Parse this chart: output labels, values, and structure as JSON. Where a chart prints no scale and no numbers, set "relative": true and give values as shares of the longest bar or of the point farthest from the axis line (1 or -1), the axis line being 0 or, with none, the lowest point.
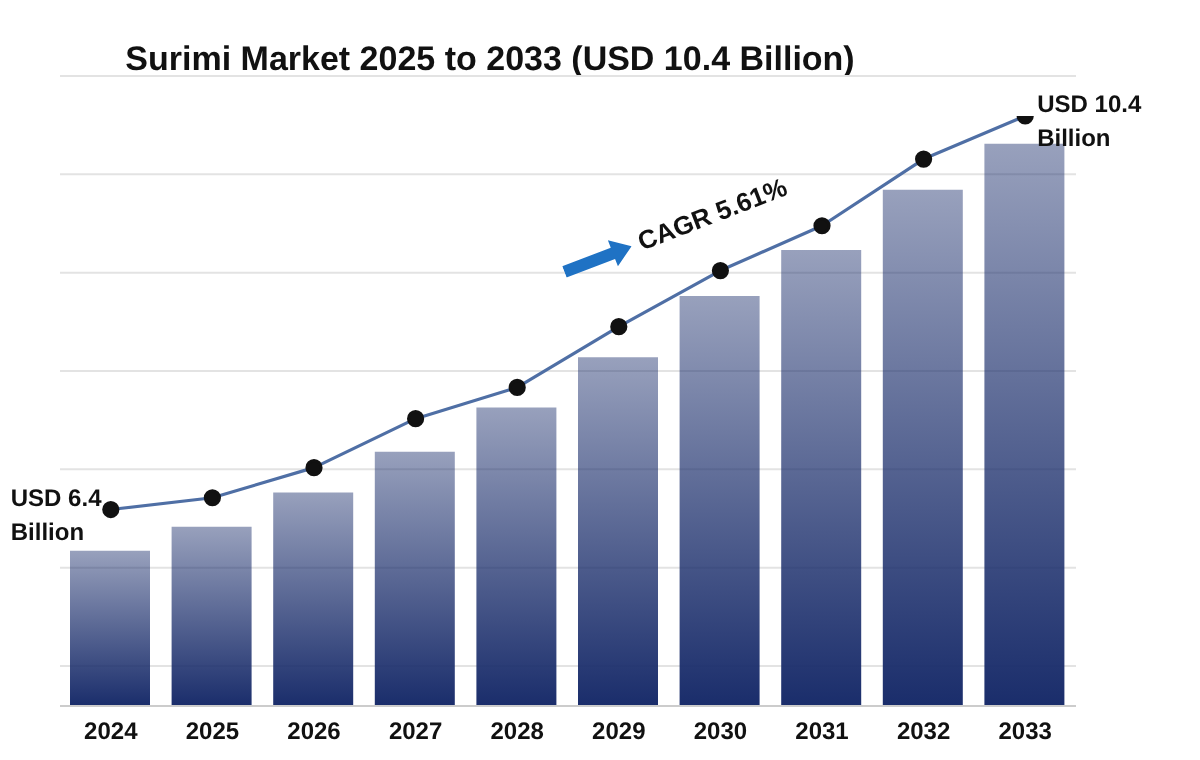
{
  "chart_data": {
    "type": "bar",
    "title": "Surimi Market 2025 to 2033 (USD 10.4 Billion)",
    "relative": true,
    "grid": "y",
    "categories": [
      "2024",
      "2025",
      "2026",
      "2027",
      "2028",
      "2029",
      "2030",
      "2031",
      "2032",
      "2033"
    ],
    "series": [
      {
        "color": "#1a2d6b",
        "values": [
          0.263,
          0.304,
          0.362,
          0.431,
          0.506,
          0.591,
          0.695,
          0.773,
          0.875,
          0.953
        ]
      },
      {
        "type": "line",
        "color": "#4f6fa5",
        "marker": "circle",
        "values": [
          0.333,
          0.353,
          0.404,
          0.487,
          0.54,
          0.643,
          0.738,
          0.814,
          0.927,
          1
        ]
      }
    ],
    "annotations": [
      {
        "text": "USD 6.4 Billion",
        "x": "2024",
        "y": 0.333
      },
      {
        "text": "USD 10.4 Billion",
        "x": "2033",
        "y": 1
      },
      "CAGR 5.61%"
    ]
  }
}
